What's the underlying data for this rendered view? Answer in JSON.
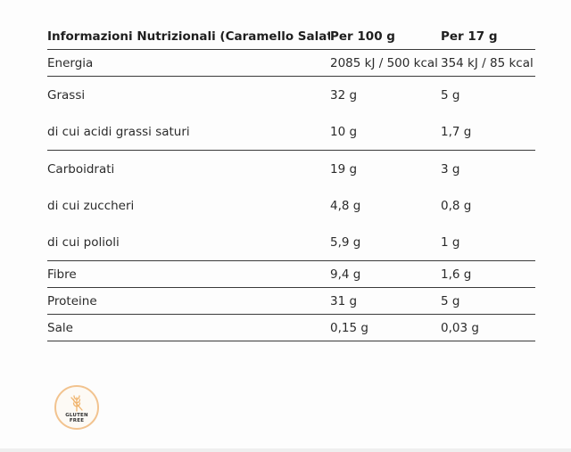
{
  "table": {
    "headers": [
      "Informazioni Nutrizionali (Caramello Salato)",
      "Per 100 g",
      "Per 17 g"
    ],
    "rows": [
      {
        "label": "Energia",
        "per100": "2085 kJ / 500 kcal",
        "per17": "354 kJ / 85 kcal"
      },
      {
        "label": "Grassi",
        "per100": "32 g",
        "per17": "5 g"
      },
      {
        "label": "di cui acidi grassi saturi",
        "per100": "10 g",
        "per17": "1,7 g"
      },
      {
        "label": "Carboidrati",
        "per100": "19 g",
        "per17": "3 g"
      },
      {
        "label": "di cui zuccheri",
        "per100": "4,8 g",
        "per17": "0,8 g"
      },
      {
        "label": "di cui polioli",
        "per100": "5,9 g",
        "per17": "1 g"
      },
      {
        "label": "Fibre",
        "per100": "9,4 g",
        "per17": "1,6 g"
      },
      {
        "label": "Proteine",
        "per100": "31 g",
        "per17": "5 g"
      },
      {
        "label": "Sale",
        "per100": "0,15 g",
        "per17": "0,03 g"
      }
    ]
  },
  "badge": {
    "icon": "wheat-crossed-icon",
    "line1": "GLUTEN",
    "line2": "FREE",
    "ring_color": "#f2c38f"
  }
}
